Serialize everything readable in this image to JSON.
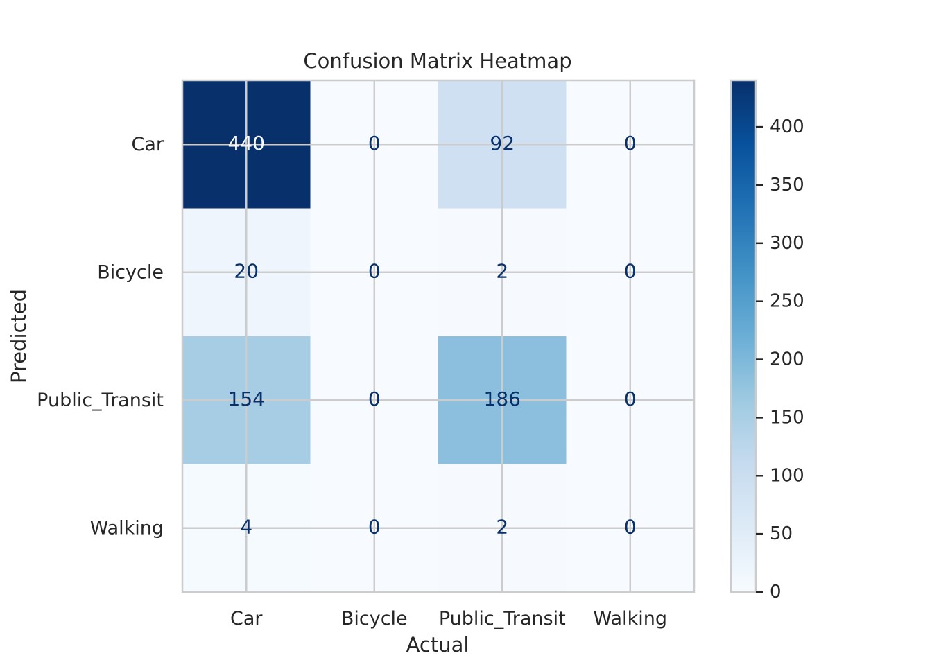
{
  "chart_data": {
    "type": "heatmap",
    "title": "Confusion Matrix Heatmap",
    "xlabel": "Actual",
    "ylabel": "Predicted",
    "x_categories": [
      "Car",
      "Bicycle",
      "Public_Transit",
      "Walking"
    ],
    "y_categories": [
      "Car",
      "Bicycle",
      "Public_Transit",
      "Walking"
    ],
    "values": [
      [
        440,
        0,
        92,
        0
      ],
      [
        20,
        0,
        2,
        0
      ],
      [
        154,
        0,
        186,
        0
      ],
      [
        4,
        0,
        2,
        0
      ]
    ],
    "colormap": "Blues",
    "colorbar": {
      "min": 0,
      "max": 440,
      "ticks": [
        0,
        50,
        100,
        150,
        200,
        250,
        300,
        350,
        400
      ]
    },
    "grid": true
  },
  "colors": {
    "low": "#f7fbff",
    "high": "#08306b",
    "dark_text": "#08306b",
    "light_text": "#f7fbff",
    "grid": "#cccccc",
    "label": "#262626"
  }
}
